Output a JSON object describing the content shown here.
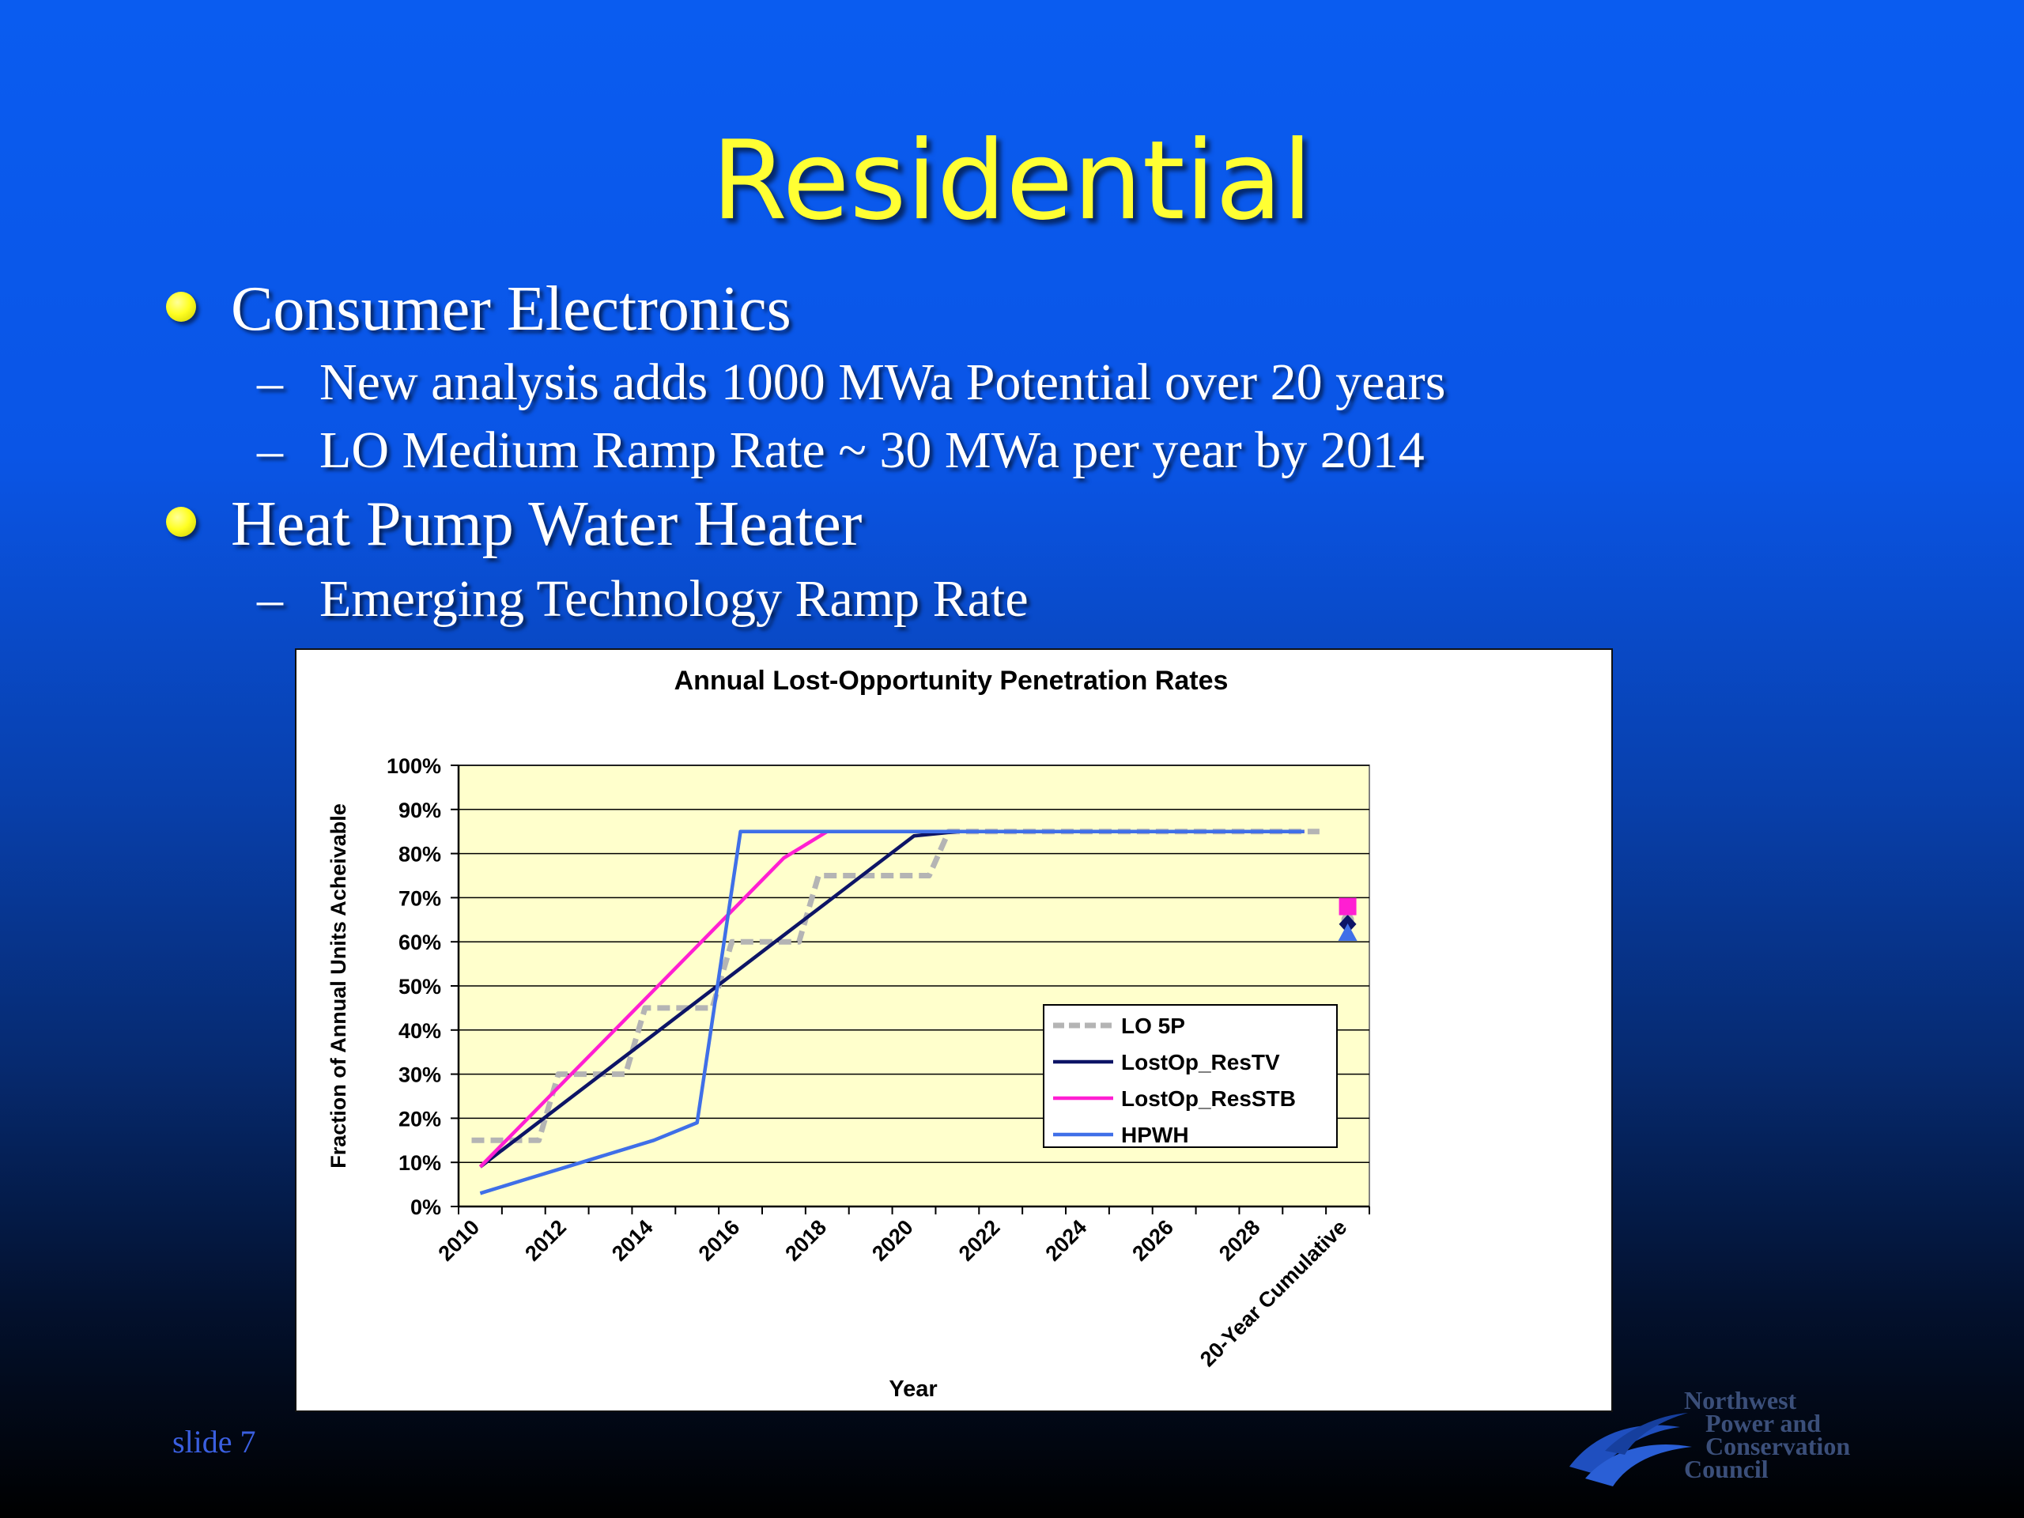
{
  "slide": {
    "title": "Residential",
    "bullets": [
      {
        "text": "Consumer Electronics",
        "subs": [
          "New analysis adds 1000 MWa Potential over 20 years",
          "LO Medium Ramp Rate ~ 30 MWa per year by 2014"
        ]
      },
      {
        "text": "Heat Pump Water Heater",
        "subs": [
          "Emerging Technology Ramp Rate"
        ]
      }
    ],
    "dash": "–",
    "slide_number": "slide 7",
    "logo_lines": [
      "Northwest",
      "Power and",
      "Conservation",
      "Council"
    ]
  },
  "chart_data": {
    "type": "line",
    "title": "Annual Lost-Opportunity Penetration Rates",
    "xlabel": "Year",
    "ylabel": "Fraction of Annual Units Acheivable",
    "ylim": [
      0,
      100
    ],
    "yticks": [
      "0%",
      "10%",
      "20%",
      "30%",
      "40%",
      "50%",
      "60%",
      "70%",
      "80%",
      "90%",
      "100%"
    ],
    "xticks": [
      "2010",
      "2012",
      "2014",
      "2016",
      "2018",
      "2020",
      "2022",
      "2024",
      "2026",
      "2028",
      "20-Year Cumulative"
    ],
    "x": [
      2010,
      2011,
      2012,
      2013,
      2014,
      2015,
      2016,
      2017,
      2018,
      2019,
      2020,
      2021,
      2022,
      2023,
      2024,
      2025,
      2026,
      2027,
      2028,
      2029
    ],
    "plot_background": "#ffffcc",
    "grid": true,
    "legend_position": "right, inside plot area",
    "series": [
      {
        "name": "LO 5P",
        "color": "#b4b4b4",
        "style": "dashed",
        "values": [
          15,
          15,
          30,
          30,
          45,
          45,
          60,
          60,
          75,
          75,
          75,
          85,
          85,
          85,
          85,
          85,
          85,
          85,
          85,
          85
        ],
        "cumulative": 65
      },
      {
        "name": "LostOp_ResTV",
        "color": "#0d1466",
        "style": "solid",
        "values": [
          9,
          16.5,
          24,
          31.5,
          39,
          46.5,
          54,
          61.5,
          69,
          76.5,
          84,
          85,
          85,
          85,
          85,
          85,
          85,
          85,
          85,
          85
        ],
        "cumulative": 64
      },
      {
        "name": "LostOp_ResSTB",
        "color": "#ff1fd2",
        "style": "solid",
        "values": [
          9,
          19,
          29,
          39,
          49,
          59,
          69,
          79,
          85,
          85,
          85,
          85,
          85,
          85,
          85,
          85,
          85,
          85,
          85,
          85
        ],
        "cumulative": 68
      },
      {
        "name": "HPWH",
        "color": "#3f6fe8",
        "style": "solid",
        "values": [
          3,
          6,
          9,
          12,
          15,
          19,
          85,
          85,
          85,
          85,
          85,
          85,
          85,
          85,
          85,
          85,
          85,
          85,
          85,
          85
        ],
        "cumulative": 62
      }
    ]
  }
}
